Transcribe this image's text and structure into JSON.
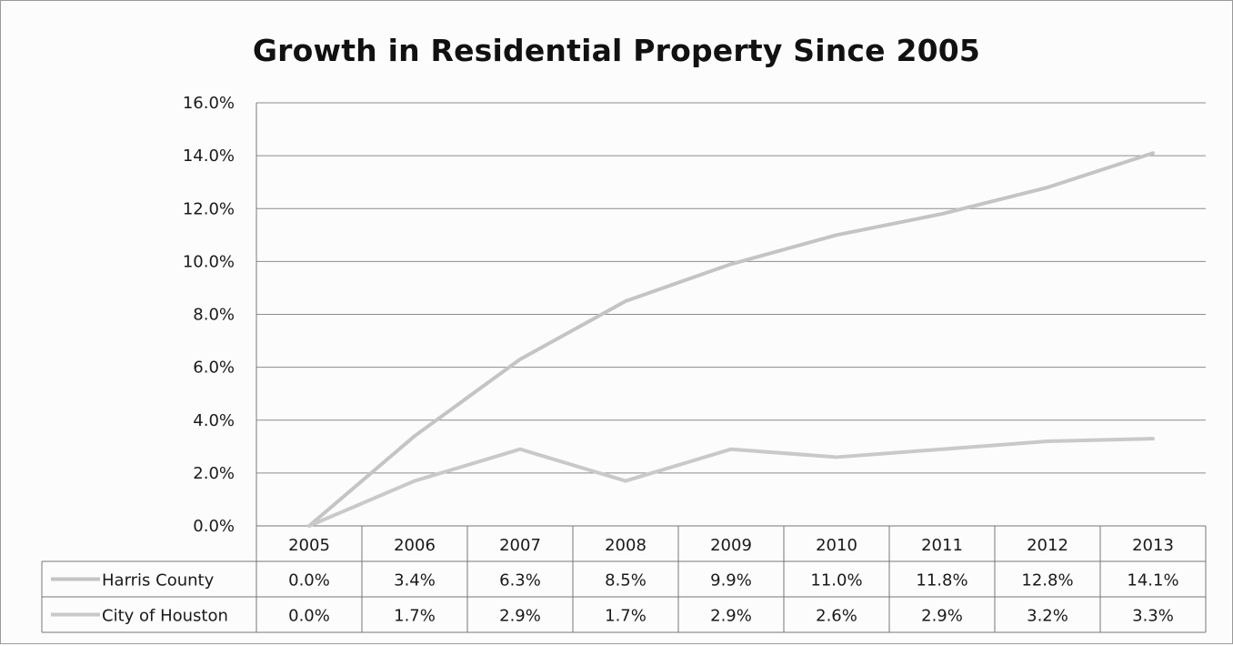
{
  "chart_data": {
    "type": "line",
    "title": "Growth in Residential Property Since 2005",
    "xlabel": "",
    "ylabel": "",
    "categories": [
      "2005",
      "2006",
      "2007",
      "2008",
      "2009",
      "2010",
      "2011",
      "2012",
      "2013"
    ],
    "y_ticks": [
      "0.0%",
      "2.0%",
      "4.0%",
      "6.0%",
      "8.0%",
      "10.0%",
      "12.0%",
      "14.0%",
      "16.0%"
    ],
    "ylim": [
      0,
      16
    ],
    "grid": true,
    "legend": "data-table",
    "series": [
      {
        "name": "Harris County",
        "values": [
          0.0,
          3.4,
          6.3,
          8.5,
          9.9,
          11.0,
          11.8,
          12.8,
          14.1
        ],
        "labels": [
          "0.0%",
          "3.4%",
          "6.3%",
          "8.5%",
          "9.9%",
          "11.0%",
          "11.8%",
          "12.8%",
          "14.1%"
        ],
        "color": "#c4c4c4"
      },
      {
        "name": "City of Houston",
        "values": [
          0.0,
          1.7,
          2.9,
          1.7,
          2.9,
          2.6,
          2.9,
          3.2,
          3.3
        ],
        "labels": [
          "0.0%",
          "1.7%",
          "2.9%",
          "1.7%",
          "2.9%",
          "2.6%",
          "2.9%",
          "3.2%",
          "3.3%"
        ],
        "color": "#c9c9c9"
      }
    ]
  }
}
